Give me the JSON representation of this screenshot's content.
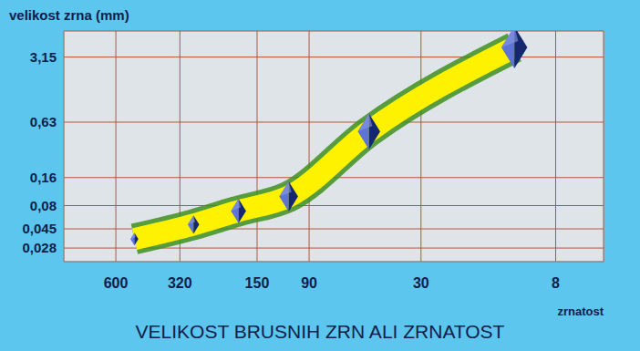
{
  "chart_data": {
    "type": "scatter",
    "title": "VELIKOST BRUSNIH ZRN ALI ZRNATOST",
    "x_label": "zrnatost",
    "y_label": "velikost zrna (mm)",
    "x": [
      500,
      280,
      180,
      110,
      50,
      12
    ],
    "values": [
      0.035,
      0.05,
      0.07,
      0.1,
      0.5,
      4
    ],
    "color": "#2746c8",
    "marker": "diamond",
    "log": true,
    "grid": true,
    "xlim": [
      1000,
      5
    ],
    "xticks": [
      600,
      320,
      150,
      90,
      30,
      8
    ],
    "ylim": [
      0.02,
      6
    ],
    "yticks": [
      {
        "value": 0.028,
        "label": "0,028"
      },
      {
        "value": 0.045,
        "label": "0,045"
      },
      {
        "value": 0.08,
        "label": "0,08"
      },
      {
        "value": 0.16,
        "label": "0,16"
      },
      {
        "value": 0.63,
        "label": "0,63"
      },
      {
        "value": 3.15,
        "label": "3,15"
      }
    ]
  }
}
